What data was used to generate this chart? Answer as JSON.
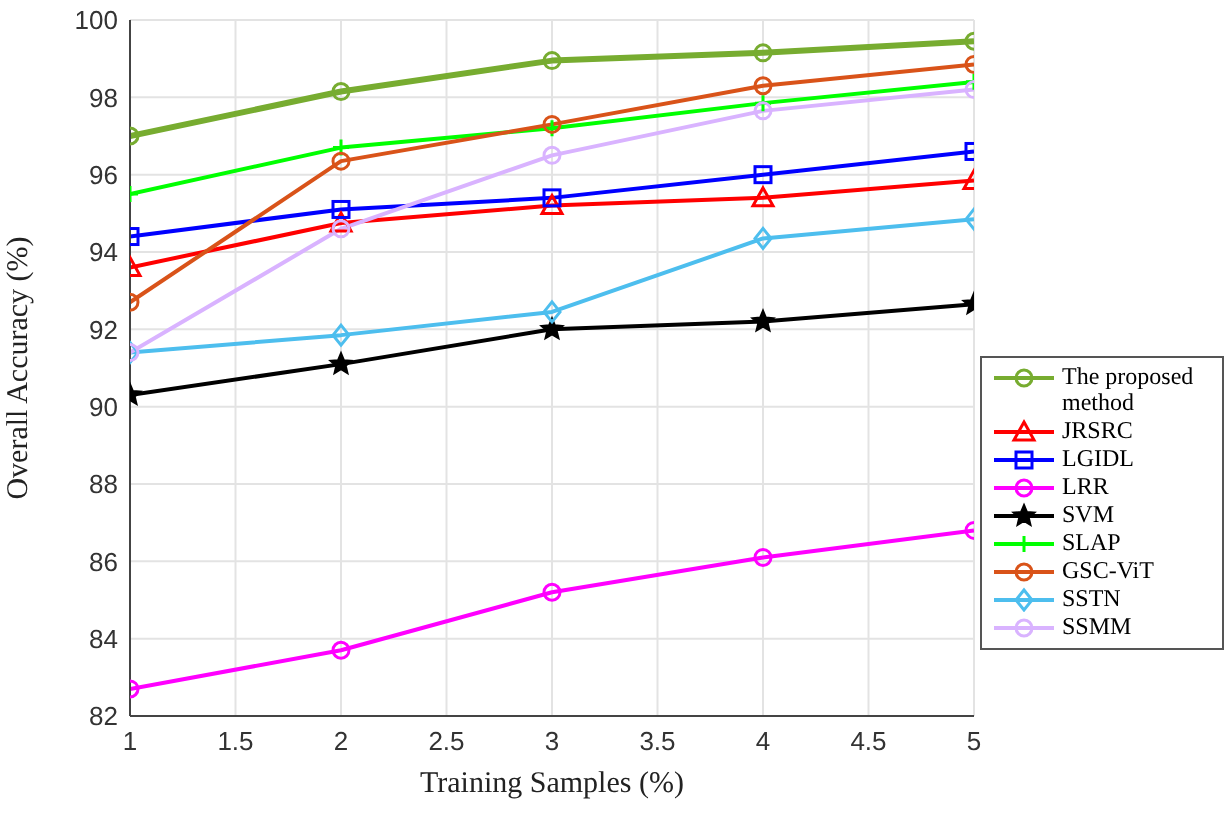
{
  "chart_data": {
    "type": "line",
    "xlabel": "Training Samples (%)",
    "ylabel": "Overall Accuracy (%)",
    "x": [
      1,
      2,
      3,
      4,
      5
    ],
    "xlim": [
      1,
      5
    ],
    "xticks": [
      1,
      1.5,
      2,
      2.5,
      3,
      3.5,
      4,
      4.5,
      5
    ],
    "ylim": [
      82,
      100
    ],
    "yticks": [
      82,
      84,
      86,
      88,
      90,
      92,
      94,
      96,
      98,
      100
    ],
    "grid": true,
    "legend": "right",
    "line_style": "solid",
    "series": [
      {
        "name": "The proposed method",
        "color": "#77ac30",
        "marker": "circle",
        "values": [
          97.0,
          98.15,
          98.95,
          99.15,
          99.45
        ]
      },
      {
        "name": "JRSRC",
        "color": "#ff0000",
        "marker": "triangle",
        "values": [
          93.6,
          94.75,
          95.2,
          95.4,
          95.85
        ]
      },
      {
        "name": "LGIDL",
        "color": "#0000ff",
        "marker": "square",
        "values": [
          94.4,
          95.1,
          95.4,
          96.0,
          96.6
        ]
      },
      {
        "name": "LRR",
        "color": "#ff00ff",
        "marker": "circle",
        "values": [
          82.7,
          83.7,
          85.2,
          86.1,
          86.8
        ]
      },
      {
        "name": "SVM",
        "color": "#000000",
        "marker": "star",
        "values": [
          90.3,
          91.1,
          92.0,
          92.2,
          92.65
        ]
      },
      {
        "name": "SLAP",
        "color": "#00ff00",
        "marker": "cross",
        "values": [
          95.5,
          96.7,
          97.2,
          97.85,
          98.4
        ]
      },
      {
        "name": "GSC-ViT",
        "color": "#d95319",
        "marker": "circle",
        "values": [
          92.7,
          96.35,
          97.3,
          98.3,
          98.85
        ]
      },
      {
        "name": "SSTN",
        "color": "#4dbeee",
        "marker": "diamond",
        "values": [
          91.4,
          91.85,
          92.45,
          94.35,
          94.85
        ]
      },
      {
        "name": "SSMM",
        "color": "#d9b3ff",
        "marker": "circle",
        "values": [
          91.4,
          94.6,
          96.5,
          97.65,
          98.2
        ]
      }
    ]
  }
}
